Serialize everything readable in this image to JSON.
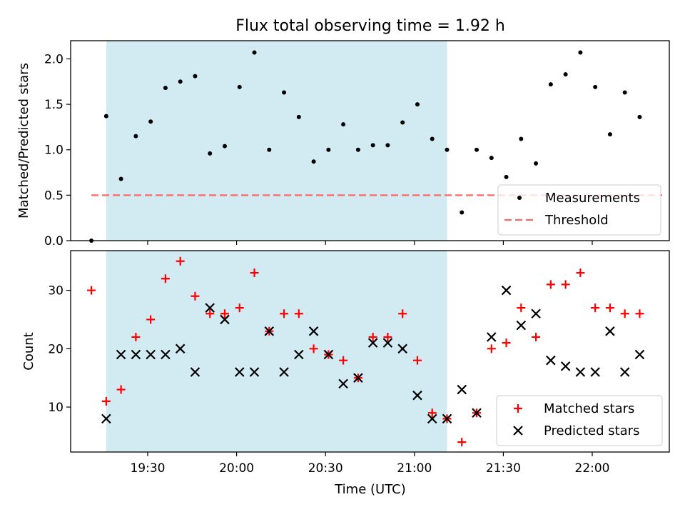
{
  "figure": {
    "title": "Flux total observing time = 1.92 h",
    "xlabel": "Time (UTC)"
  },
  "chart_data": [
    {
      "type": "scatter",
      "ylabel": "Matched/Predicted stars",
      "xlim": [
        "19:04",
        "22:26"
      ],
      "ylim": [
        0,
        2.2
      ],
      "yticks": [
        0.0,
        0.5,
        1.0,
        1.5,
        2.0
      ],
      "ytick_labels": [
        "0.0",
        "0.5",
        "1.0",
        "1.5",
        "2.0"
      ],
      "shaded_interval": [
        "19:16",
        "21:11"
      ],
      "shade_color": "#add8e6",
      "threshold": 0.5,
      "threshold_color": "#ff6666",
      "legend": {
        "location": "lower right",
        "entries": [
          "Measurements",
          "Threshold"
        ]
      },
      "series": [
        {
          "name": "Measurements",
          "color": "#000000",
          "x": [
            "19:11",
            "19:16",
            "19:21",
            "19:26",
            "19:31",
            "19:36",
            "19:41",
            "19:46",
            "19:51",
            "19:56",
            "20:01",
            "20:06",
            "20:11",
            "20:16",
            "20:21",
            "20:26",
            "20:31",
            "20:36",
            "20:41",
            "20:46",
            "20:51",
            "20:56",
            "21:01",
            "21:06",
            "21:11",
            "21:16",
            "21:21",
            "21:26",
            "21:31",
            "21:36",
            "21:41",
            "21:46",
            "21:51",
            "21:56",
            "22:01",
            "22:06",
            "22:11",
            "22:16"
          ],
          "y": [
            0.0,
            1.37,
            0.68,
            1.15,
            1.31,
            1.68,
            1.75,
            1.81,
            0.96,
            1.04,
            1.69,
            2.07,
            1.0,
            1.63,
            1.36,
            0.87,
            1.0,
            1.28,
            1.0,
            1.05,
            1.05,
            1.3,
            1.5,
            1.12,
            1.0,
            0.31,
            1.0,
            0.91,
            0.7,
            1.12,
            0.85,
            1.72,
            1.83,
            2.07,
            1.69,
            1.17,
            1.63,
            1.36
          ]
        }
      ]
    },
    {
      "type": "scatter",
      "ylabel": "Count",
      "xlim": [
        "19:04",
        "22:26"
      ],
      "ylim": [
        2.3,
        36.8
      ],
      "yticks": [
        10,
        20,
        30
      ],
      "ytick_labels": [
        "10",
        "20",
        "30"
      ],
      "xticks": [
        "19:30",
        "20:00",
        "20:30",
        "21:00",
        "21:30",
        "22:00"
      ],
      "shaded_interval": [
        "19:16",
        "21:11"
      ],
      "shade_color": "#add8e6",
      "legend": {
        "location": "lower right",
        "entries": [
          "Matched stars",
          "Predicted stars"
        ]
      },
      "series": [
        {
          "name": "Matched stars",
          "marker": "plus",
          "color": "#ff0000",
          "x": [
            "19:11",
            "19:16",
            "19:21",
            "19:26",
            "19:31",
            "19:36",
            "19:41",
            "19:46",
            "19:51",
            "19:56",
            "20:01",
            "20:06",
            "20:11",
            "20:16",
            "20:21",
            "20:26",
            "20:31",
            "20:36",
            "20:41",
            "20:46",
            "20:51",
            "20:56",
            "21:01",
            "21:06",
            "21:11",
            "21:16",
            "21:21",
            "21:26",
            "21:31",
            "21:36",
            "21:41",
            "21:46",
            "21:51",
            "21:56",
            "22:01",
            "22:06",
            "22:11",
            "22:16"
          ],
          "y": [
            30,
            11,
            13,
            22,
            25,
            32,
            35,
            29,
            26,
            26,
            27,
            33,
            23,
            26,
            26,
            20,
            19,
            18,
            15,
            22,
            22,
            26,
            18,
            9,
            8,
            4,
            9,
            20,
            21,
            27,
            22,
            31,
            31,
            33,
            27,
            27,
            26,
            26
          ]
        },
        {
          "name": "Predicted stars",
          "marker": "x",
          "color": "#000000",
          "x": [
            "19:16",
            "19:21",
            "19:26",
            "19:31",
            "19:36",
            "19:41",
            "19:46",
            "19:51",
            "19:56",
            "20:01",
            "20:06",
            "20:11",
            "20:16",
            "20:21",
            "20:26",
            "20:31",
            "20:36",
            "20:41",
            "20:46",
            "20:51",
            "20:56",
            "21:01",
            "21:06",
            "21:11",
            "21:16",
            "21:21",
            "21:26",
            "21:31",
            "21:36",
            "21:41",
            "21:46",
            "21:51",
            "21:56",
            "22:01",
            "22:06",
            "22:11",
            "22:16"
          ],
          "y": [
            8,
            19,
            19,
            19,
            19,
            20,
            16,
            27,
            25,
            16,
            16,
            23,
            16,
            19,
            23,
            19,
            14,
            15,
            21,
            21,
            20,
            12,
            8,
            8,
            13,
            9,
            22,
            30,
            24,
            26,
            18,
            17,
            16,
            16,
            23,
            16,
            19
          ]
        }
      ]
    }
  ]
}
